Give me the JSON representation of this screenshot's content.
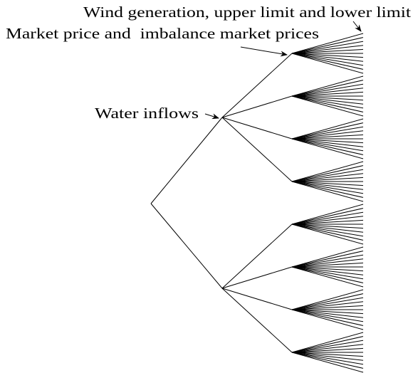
{
  "labels": {
    "wind": "Wind generation, upper limit and lower limit",
    "market": "Market price and  imbalance market prices",
    "water": "Water inflows"
  }
}
